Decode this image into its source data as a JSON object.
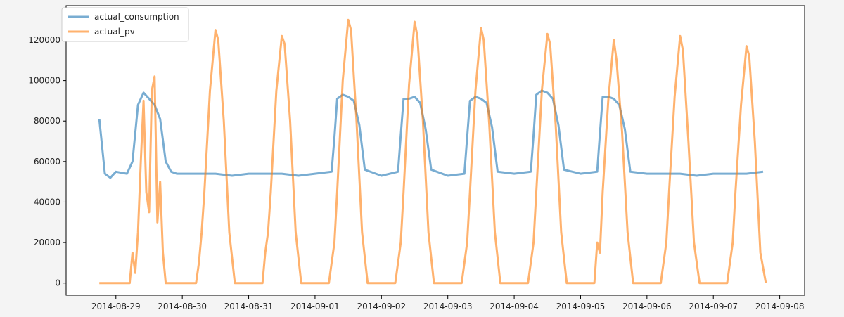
{
  "chart_data": {
    "type": "line",
    "title": "",
    "xlabel": "",
    "ylabel": "",
    "x_ticks": [
      "2014-08-29",
      "2014-08-30",
      "2014-08-31",
      "2014-09-01",
      "2014-09-02",
      "2014-09-03",
      "2014-09-04",
      "2014-09-05",
      "2014-09-06",
      "2014-09-07",
      "2014-09-08"
    ],
    "y_ticks": [
      0,
      20000,
      40000,
      60000,
      80000,
      100000,
      120000
    ],
    "xlim": [
      "2014-08-28 06:00",
      "2014-09-08 09:00"
    ],
    "ylim": [
      -6000,
      137000
    ],
    "grid": false,
    "legend_position": "top-left",
    "series": [
      {
        "name": "actual_consumption",
        "color": "#1f77b4",
        "x": [
          "2014-08-28 18:00",
          "2014-08-28 20:00",
          "2014-08-28 22:00",
          "2014-08-29 00:00",
          "2014-08-29 04:00",
          "2014-08-29 06:00",
          "2014-08-29 08:00",
          "2014-08-29 10:00",
          "2014-08-29 12:00",
          "2014-08-29 14:00",
          "2014-08-29 16:00",
          "2014-08-29 18:00",
          "2014-08-29 20:00",
          "2014-08-29 22:00",
          "2014-08-30 06:00",
          "2014-08-30 12:00",
          "2014-08-30 18:00",
          "2014-08-31 00:00",
          "2014-08-31 06:00",
          "2014-08-31 12:00",
          "2014-08-31 18:00",
          "2014-09-01 00:00",
          "2014-09-01 06:00",
          "2014-09-01 07:00",
          "2014-09-01 08:00",
          "2014-09-01 10:00",
          "2014-09-01 12:00",
          "2014-09-01 14:00",
          "2014-09-01 16:00",
          "2014-09-01 18:00",
          "2014-09-02 00:00",
          "2014-09-02 06:00",
          "2014-09-02 07:00",
          "2014-09-02 08:00",
          "2014-09-02 10:00",
          "2014-09-02 12:00",
          "2014-09-02 14:00",
          "2014-09-02 16:00",
          "2014-09-02 18:00",
          "2014-09-03 00:00",
          "2014-09-03 06:00",
          "2014-09-03 07:00",
          "2014-09-03 08:00",
          "2014-09-03 10:00",
          "2014-09-03 12:00",
          "2014-09-03 14:00",
          "2014-09-03 16:00",
          "2014-09-03 18:00",
          "2014-09-04 00:00",
          "2014-09-04 06:00",
          "2014-09-04 07:00",
          "2014-09-04 08:00",
          "2014-09-04 10:00",
          "2014-09-04 12:00",
          "2014-09-04 14:00",
          "2014-09-04 16:00",
          "2014-09-04 18:00",
          "2014-09-05 00:00",
          "2014-09-05 06:00",
          "2014-09-05 07:00",
          "2014-09-05 08:00",
          "2014-09-05 10:00",
          "2014-09-05 12:00",
          "2014-09-05 14:00",
          "2014-09-05 16:00",
          "2014-09-05 18:00",
          "2014-09-06 00:00",
          "2014-09-06 06:00",
          "2014-09-06 12:00",
          "2014-09-06 18:00",
          "2014-09-07 00:00",
          "2014-09-07 06:00",
          "2014-09-07 12:00",
          "2014-09-07 18:00"
        ],
        "y": [
          81000,
          54000,
          52000,
          55000,
          54000,
          60000,
          88000,
          94000,
          91000,
          88000,
          81000,
          60000,
          55000,
          54000,
          54000,
          54000,
          53000,
          54000,
          54000,
          54000,
          53000,
          54000,
          55000,
          72000,
          91000,
          93000,
          92000,
          90000,
          78000,
          56000,
          53000,
          55000,
          73000,
          91000,
          91000,
          92000,
          89000,
          76000,
          56000,
          53000,
          54000,
          72000,
          90000,
          92000,
          91000,
          89000,
          77000,
          55000,
          54000,
          55000,
          73000,
          93000,
          95000,
          94000,
          91000,
          78000,
          56000,
          54000,
          55000,
          74000,
          92000,
          92000,
          91000,
          88000,
          76000,
          55000,
          54000,
          54000,
          54000,
          53000,
          54000,
          54000,
          54000,
          55000
        ]
      },
      {
        "name": "actual_pv",
        "color": "#ff7f0e",
        "x": [
          "2014-08-28 18:00",
          "2014-08-29 05:00",
          "2014-08-29 06:00",
          "2014-08-29 07:00",
          "2014-08-29 08:00",
          "2014-08-29 09:00",
          "2014-08-29 10:00",
          "2014-08-29 11:00",
          "2014-08-29 12:00",
          "2014-08-29 13:00",
          "2014-08-29 14:00",
          "2014-08-29 15:00",
          "2014-08-29 16:00",
          "2014-08-29 17:00",
          "2014-08-29 18:00",
          "2014-08-29 19:00",
          "2014-08-30 05:00",
          "2014-08-30 06:00",
          "2014-08-30 07:00",
          "2014-08-30 08:00",
          "2014-08-30 10:00",
          "2014-08-30 12:00",
          "2014-08-30 13:00",
          "2014-08-30 15:00",
          "2014-08-30 17:00",
          "2014-08-30 19:00",
          "2014-08-31 05:00",
          "2014-08-31 06:00",
          "2014-08-31 07:00",
          "2014-08-31 08:00",
          "2014-08-31 10:00",
          "2014-08-31 12:00",
          "2014-08-31 13:00",
          "2014-08-31 15:00",
          "2014-08-31 17:00",
          "2014-08-31 19:00",
          "2014-09-01 05:00",
          "2014-09-01 06:00",
          "2014-09-01 07:00",
          "2014-09-01 08:00",
          "2014-09-01 10:00",
          "2014-09-01 12:00",
          "2014-09-01 13:00",
          "2014-09-01 15:00",
          "2014-09-01 17:00",
          "2014-09-01 19:00",
          "2014-09-02 05:00",
          "2014-09-02 06:00",
          "2014-09-02 07:00",
          "2014-09-02 08:00",
          "2014-09-02 10:00",
          "2014-09-02 12:00",
          "2014-09-02 13:00",
          "2014-09-02 15:00",
          "2014-09-02 17:00",
          "2014-09-02 19:00",
          "2014-09-03 05:00",
          "2014-09-03 06:00",
          "2014-09-03 07:00",
          "2014-09-03 08:00",
          "2014-09-03 10:00",
          "2014-09-03 12:00",
          "2014-09-03 13:00",
          "2014-09-03 15:00",
          "2014-09-03 17:00",
          "2014-09-03 19:00",
          "2014-09-04 05:00",
          "2014-09-04 06:00",
          "2014-09-04 07:00",
          "2014-09-04 08:00",
          "2014-09-04 10:00",
          "2014-09-04 12:00",
          "2014-09-04 13:00",
          "2014-09-04 15:00",
          "2014-09-04 17:00",
          "2014-09-04 19:00",
          "2014-09-05 05:00",
          "2014-09-05 06:00",
          "2014-09-05 07:00",
          "2014-09-05 08:00",
          "2014-09-05 10:00",
          "2014-09-05 12:00",
          "2014-09-05 13:00",
          "2014-09-05 15:00",
          "2014-09-05 17:00",
          "2014-09-05 19:00",
          "2014-09-06 05:00",
          "2014-09-06 06:00",
          "2014-09-06 07:00",
          "2014-09-06 08:00",
          "2014-09-06 10:00",
          "2014-09-06 12:00",
          "2014-09-06 13:00",
          "2014-09-06 15:00",
          "2014-09-06 17:00",
          "2014-09-06 19:00",
          "2014-09-07 05:00",
          "2014-09-07 06:00",
          "2014-09-07 07:00",
          "2014-09-07 08:00",
          "2014-09-07 10:00",
          "2014-09-07 12:00",
          "2014-09-07 13:00",
          "2014-09-07 15:00",
          "2014-09-07 17:00",
          "2014-09-07 19:00"
        ],
        "y": [
          0,
          0,
          15000,
          5000,
          25000,
          60000,
          90000,
          45000,
          35000,
          95000,
          102000,
          30000,
          50000,
          15000,
          0,
          0,
          0,
          10000,
          25000,
          45000,
          95000,
          125000,
          120000,
          80000,
          25000,
          0,
          0,
          15000,
          25000,
          45000,
          95000,
          122000,
          118000,
          80000,
          25000,
          0,
          0,
          10000,
          20000,
          45000,
          100000,
          130000,
          125000,
          80000,
          25000,
          0,
          0,
          10000,
          20000,
          45000,
          98000,
          129000,
          122000,
          80000,
          25000,
          0,
          0,
          10000,
          20000,
          45000,
          95000,
          126000,
          120000,
          78000,
          25000,
          0,
          0,
          10000,
          20000,
          45000,
          95000,
          123000,
          118000,
          78000,
          25000,
          0,
          0,
          20000,
          15000,
          45000,
          90000,
          120000,
          110000,
          75000,
          25000,
          0,
          0,
          10000,
          20000,
          45000,
          92000,
          122000,
          115000,
          70000,
          20000,
          0,
          0,
          10000,
          20000,
          45000,
          88000,
          117000,
          112000,
          70000,
          15000,
          0
        ]
      }
    ]
  }
}
